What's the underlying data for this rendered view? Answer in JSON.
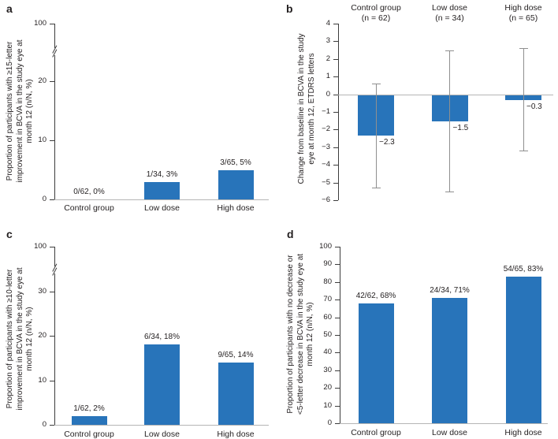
{
  "figure": {
    "bar_color": "#2874BA",
    "axis_color": "#3c3c3c",
    "light_line_color": "#b5b5b5",
    "error_bar_color": "#8f8f8f",
    "text_color": "#231f20",
    "background": "#ffffff"
  },
  "chart_data": [
    {
      "type": "bar",
      "panel_label": "a",
      "title": "",
      "xlabel": "",
      "ylabel": "Proportion of participants with ≥15-letter improvement in BCVA in the study eye at month 12 (n/N, %)",
      "ylabel_lines": "Proportion of participants with ≥15-letter\nimprovement in BCVA in the study eye at\nmonth 12 (n/N, %)",
      "categories": [
        "Control group",
        "Low dose",
        "High dose"
      ],
      "values": [
        0,
        3,
        5
      ],
      "bar_labels": [
        "0/62, 0%",
        "1/34, 3%",
        "3/65, 5%"
      ],
      "ytick_values": [
        0,
        10,
        20
      ],
      "ytick_labels": [
        "0",
        "10",
        "20"
      ],
      "axis_break": true,
      "ytop_tick_label": "100",
      "ylim": [
        0,
        100
      ],
      "grid": false,
      "legend": null
    },
    {
      "type": "bar",
      "panel_label": "b",
      "title": "",
      "xlabel": "",
      "ylabel": "Change from baseline in BCVA in the study eye at month 12, ETDRS letters",
      "ylabel_lines": "Change from baseline in BCVA in the study\neye at month 12, ETDRS letters",
      "categories": [
        "Control group",
        "Low dose",
        "High dose"
      ],
      "group_headers": [
        "Control group\n(n = 62)",
        "Low dose\n(n = 34)",
        "High dose\n(n = 65)"
      ],
      "values": [
        -2.3,
        -1.5,
        -0.3
      ],
      "bar_labels": [
        "−2.3",
        "−1.5",
        "−0.3"
      ],
      "error_upper": [
        0.6,
        2.5,
        2.6
      ],
      "error_lower": [
        -5.3,
        -5.5,
        -3.2
      ],
      "ytick_values": [
        4,
        3,
        2,
        1,
        0,
        -1,
        -2,
        -3,
        -4,
        -5,
        -6
      ],
      "ytick_labels": [
        "4",
        "3",
        "2",
        "1",
        "0",
        "−1",
        "−2",
        "−3",
        "−4",
        "−5",
        "−6"
      ],
      "axis_break": false,
      "ylim": [
        -6,
        4
      ],
      "grid": false,
      "legend": null
    },
    {
      "type": "bar",
      "panel_label": "c",
      "title": "",
      "xlabel": "",
      "ylabel": "Proportion of participants with ≥10-letter improvement in BCVA in the study eye at month 12 (n/N, %)",
      "ylabel_lines": "Proportion of participants with ≥10-letter\nimprovement in BCVA in the study eye at\nmonth 12 (n/N, %)",
      "categories": [
        "Control group",
        "Low dose",
        "High dose"
      ],
      "values": [
        2,
        18,
        14
      ],
      "bar_labels": [
        "1/62, 2%",
        "6/34, 18%",
        "9/65, 14%"
      ],
      "ytick_values": [
        0,
        10,
        20,
        30
      ],
      "ytick_labels": [
        "0",
        "10",
        "20",
        "30"
      ],
      "axis_break": true,
      "ytop_tick_label": "100",
      "ylim": [
        0,
        100
      ],
      "grid": false,
      "legend": null
    },
    {
      "type": "bar",
      "panel_label": "d",
      "title": "",
      "xlabel": "",
      "ylabel": "Proportion of participants with no decrease or <5-letter decrease in BCVA in the study eye at month 12 (n/N, %)",
      "ylabel_lines": "Proportion of participants with no decrease or\n<5-letter decrease in BCVA in the study eye at\nmonth 12 (n/N, %)",
      "categories": [
        "Control group",
        "Low dose",
        "High dose"
      ],
      "values": [
        68,
        71,
        83
      ],
      "bar_labels": [
        "42/62, 68%",
        "24/34, 71%",
        "54/65, 83%"
      ],
      "ytick_values": [
        0,
        10,
        20,
        30,
        40,
        50,
        60,
        70,
        80,
        90,
        100
      ],
      "ytick_labels": [
        "0",
        "10",
        "20",
        "30",
        "40",
        "50",
        "60",
        "70",
        "80",
        "90",
        "100"
      ],
      "axis_break": false,
      "ylim": [
        0,
        100
      ],
      "grid": false,
      "legend": null
    }
  ]
}
